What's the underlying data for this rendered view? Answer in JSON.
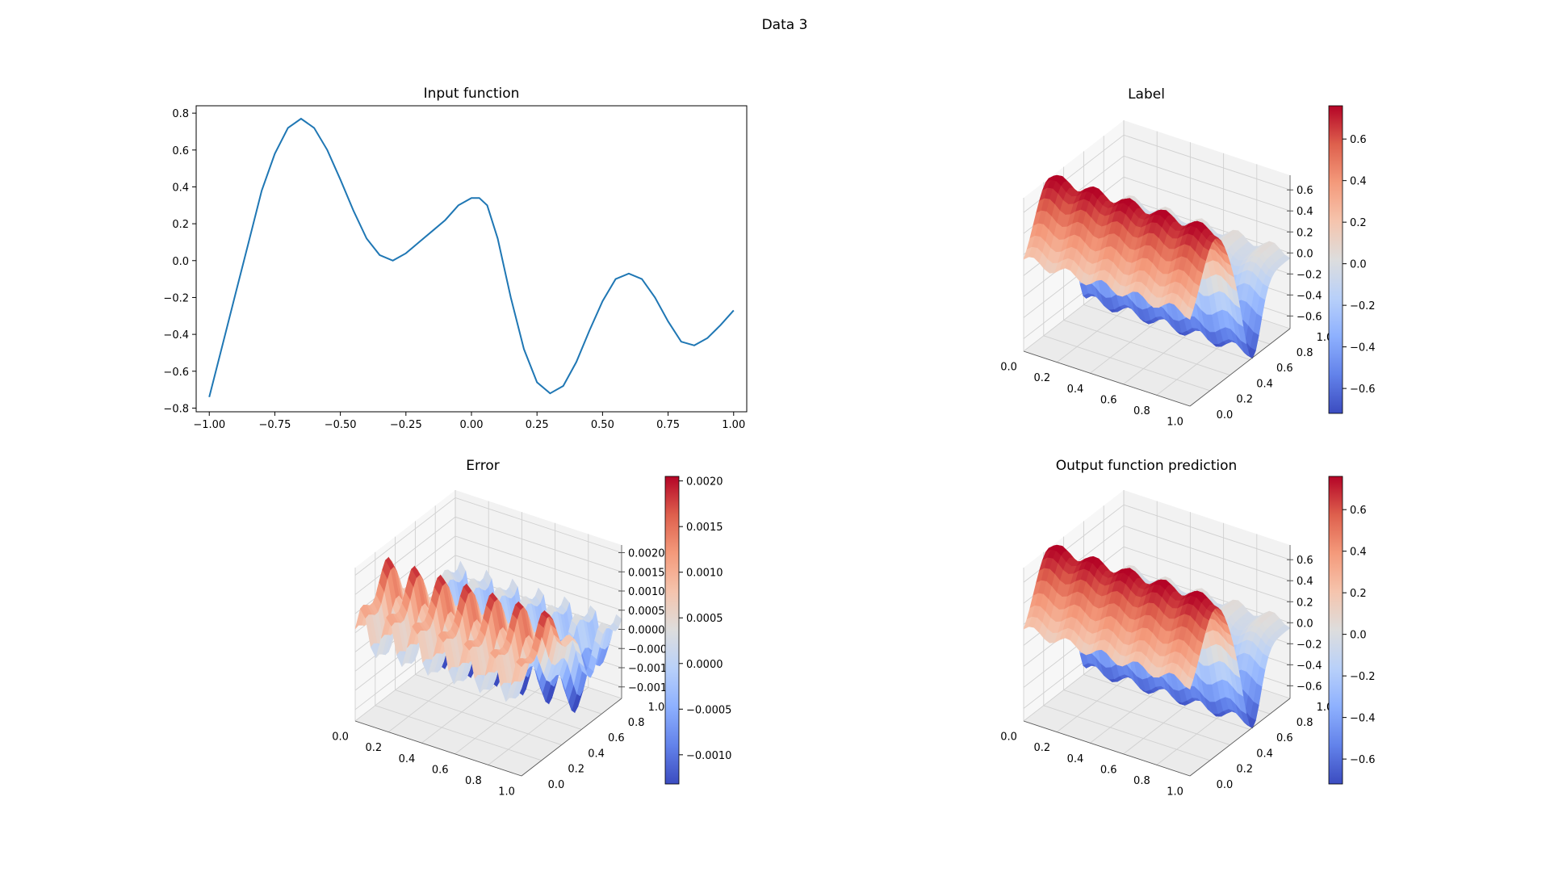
{
  "figure": {
    "title": "Data 3"
  },
  "colormap": {
    "name": "coolwarm",
    "low": "#3b4cc0",
    "mid": "#dddddd",
    "high": "#b40426"
  },
  "line_color": "#1f77b4",
  "chart_data": [
    {
      "id": "input",
      "type": "line",
      "title": "Input function",
      "xlim": [
        -1.05,
        1.05
      ],
      "ylim": [
        -0.82,
        0.84
      ],
      "xticks": [
        -1.0,
        -0.75,
        -0.5,
        -0.25,
        0.0,
        0.25,
        0.5,
        0.75,
        1.0
      ],
      "xtick_labels": [
        "−1.00",
        "−0.75",
        "−0.50",
        "−0.25",
        "0.00",
        "0.25",
        "0.50",
        "0.75",
        "1.00"
      ],
      "yticks": [
        -0.8,
        -0.6,
        -0.4,
        -0.2,
        0.0,
        0.2,
        0.4,
        0.6,
        0.8
      ],
      "ytick_labels": [
        "−0.8",
        "−0.6",
        "−0.4",
        "−0.2",
        "0.0",
        "0.2",
        "0.4",
        "0.6",
        "0.8"
      ],
      "grid": false,
      "series": [
        {
          "x": [
            -1.0,
            -0.95,
            -0.9,
            -0.85,
            -0.8,
            -0.75,
            -0.7,
            -0.65,
            -0.6,
            -0.55,
            -0.5,
            -0.45,
            -0.4,
            -0.35,
            -0.3,
            -0.25,
            -0.2,
            -0.15,
            -0.1,
            -0.05,
            0.0,
            0.03,
            0.06,
            0.1,
            0.15,
            0.2,
            0.25,
            0.3,
            0.35,
            0.4,
            0.45,
            0.5,
            0.55,
            0.6,
            0.65,
            0.7,
            0.75,
            0.8,
            0.85,
            0.9,
            0.95,
            1.0
          ],
          "y": [
            -0.74,
            -0.46,
            -0.18,
            0.1,
            0.38,
            0.58,
            0.72,
            0.77,
            0.72,
            0.6,
            0.44,
            0.27,
            0.12,
            0.03,
            0.0,
            0.04,
            0.1,
            0.16,
            0.22,
            0.3,
            0.34,
            0.34,
            0.3,
            0.12,
            -0.2,
            -0.48,
            -0.66,
            -0.72,
            -0.68,
            -0.55,
            -0.38,
            -0.22,
            -0.1,
            -0.07,
            -0.1,
            -0.2,
            -0.33,
            -0.44,
            -0.46,
            -0.42,
            -0.35,
            -0.27
          ]
        }
      ]
    },
    {
      "id": "label",
      "type": "surface3d",
      "title": "Label",
      "xticks": [
        "0.0",
        "0.2",
        "0.4",
        "0.6",
        "0.8",
        "1.0"
      ],
      "yticks": [
        "0.0",
        "0.2",
        "0.4",
        "0.6",
        "0.8",
        "1.0"
      ],
      "zlim": [
        -0.72,
        0.74
      ],
      "zticks": [
        -0.6,
        -0.4,
        -0.2,
        0.0,
        0.2,
        0.4,
        0.6
      ],
      "ztick_labels": [
        "−0.6",
        "−0.4",
        "−0.2",
        "0.0",
        "0.2",
        "0.4",
        "0.6"
      ],
      "colorbar": {
        "min": -0.72,
        "max": 0.76,
        "ticks": [
          -0.6,
          -0.4,
          -0.2,
          0.0,
          0.2,
          0.4,
          0.6
        ],
        "tick_labels": [
          "−0.6",
          "−0.4",
          "−0.2",
          "0.0",
          "0.2",
          "0.4",
          "0.6"
        ]
      }
    },
    {
      "id": "error",
      "type": "surface3d",
      "title": "Error",
      "xticks": [
        "0.0",
        "0.2",
        "0.4",
        "0.6",
        "0.8",
        "1.0"
      ],
      "yticks": [
        "0.0",
        "0.2",
        "0.4",
        "0.6",
        "0.8",
        "1.0"
      ],
      "zlim": [
        -0.0018,
        0.0022
      ],
      "zticks": [
        -0.0015,
        -0.001,
        -0.0005,
        0.0,
        0.0005,
        0.001,
        0.0015,
        0.002
      ],
      "ztick_labels": [
        "−0.0015",
        "−0.0010",
        "−0.0005",
        "0.0000",
        "0.0005",
        "0.0010",
        "0.0015",
        "0.0020"
      ],
      "colorbar": {
        "min": -0.00132,
        "max": 0.00205,
        "ticks": [
          -0.001,
          -0.0005,
          0.0,
          0.0005,
          0.001,
          0.0015,
          0.002
        ],
        "tick_labels": [
          "−0.0010",
          "−0.0005",
          "0.0000",
          "0.0005",
          "0.0010",
          "0.0015",
          "0.0020"
        ]
      }
    },
    {
      "id": "prediction",
      "type": "surface3d",
      "title": "Output function prediction",
      "xticks": [
        "0.0",
        "0.2",
        "0.4",
        "0.6",
        "0.8",
        "1.0"
      ],
      "yticks": [
        "0.0",
        "0.2",
        "0.4",
        "0.6",
        "0.8",
        "1.0"
      ],
      "zlim": [
        -0.72,
        0.74
      ],
      "zticks": [
        -0.6,
        -0.4,
        -0.2,
        0.0,
        0.2,
        0.4,
        0.6
      ],
      "ztick_labels": [
        "−0.6",
        "−0.4",
        "−0.2",
        "0.0",
        "0.2",
        "0.4",
        "0.6"
      ],
      "colorbar": {
        "min": -0.72,
        "max": 0.76,
        "ticks": [
          -0.6,
          -0.4,
          -0.2,
          0.0,
          0.2,
          0.4,
          0.6
        ],
        "tick_labels": [
          "−0.6",
          "−0.4",
          "−0.2",
          "0.0",
          "0.2",
          "0.4",
          "0.6"
        ]
      }
    }
  ]
}
